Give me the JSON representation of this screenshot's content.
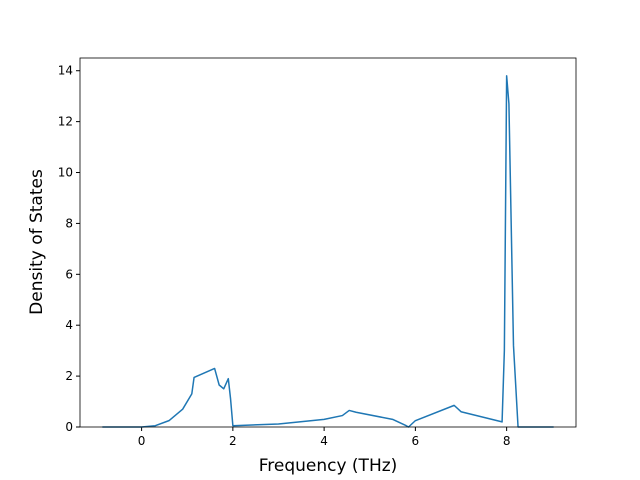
{
  "chart_data": {
    "type": "line",
    "xlabel": "Frequency (THz)",
    "ylabel": "Density of States",
    "x": [
      -0.86,
      0,
      0.3,
      0.6,
      0.9,
      1.1,
      1.15,
      1.6,
      1.7,
      1.8,
      1.9,
      1.95,
      2.0,
      3.0,
      4.0,
      4.4,
      4.55,
      4.7,
      5.5,
      5.8,
      5.85,
      6.0,
      6.85,
      7.0,
      7.9,
      7.95,
      8.0,
      8.05,
      8.15,
      8.25,
      9.03
    ],
    "series": [
      {
        "name": "DOS",
        "color": "#1f77b4",
        "values": [
          0,
          0,
          0.05,
          0.25,
          0.7,
          1.3,
          1.95,
          2.3,
          1.65,
          1.5,
          1.9,
          1.1,
          0.05,
          0.12,
          0.3,
          0.45,
          0.65,
          0.58,
          0.3,
          0.05,
          0,
          0.25,
          0.85,
          0.6,
          0.2,
          3,
          13.8,
          12.7,
          3.2,
          0,
          0
        ]
      }
    ],
    "xlim": [
      -1.35,
      9.52
    ],
    "ylim": [
      0,
      14.5
    ],
    "xticks": [
      0,
      2,
      4,
      6,
      8
    ],
    "yticks": [
      0,
      2,
      4,
      6,
      8,
      10,
      12,
      14
    ]
  }
}
